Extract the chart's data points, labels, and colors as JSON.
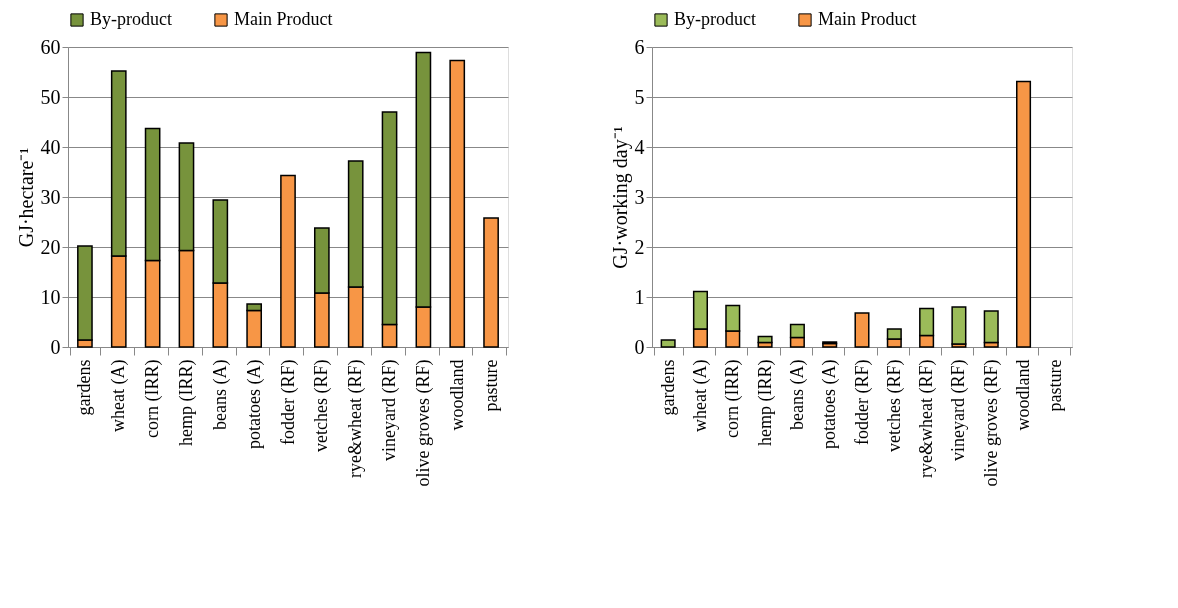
{
  "chart_data": [
    {
      "type": "bar",
      "stacked": true,
      "ylabel": "GJ·hectare⁻¹",
      "categories": [
        "gardens",
        "wheat (A)",
        "corn (IRR)",
        "hemp (IRR)",
        "beans (A)",
        "potatoes (A)",
        "fodder (RF)",
        "vetches (RF)",
        "rye&wheat (RF)",
        "vineyard (RF)",
        "olive groves (RF)",
        "woodland",
        "pasture"
      ],
      "series": [
        {
          "name": "Main Product",
          "color": "#f79646",
          "values": [
            1.4,
            18.2,
            17.3,
            19.3,
            12.8,
            7.3,
            34.3,
            10.8,
            12.0,
            4.5,
            8.0,
            57.3,
            25.8
          ]
        },
        {
          "name": "By-product",
          "color": "#77933c",
          "values": [
            18.8,
            37.0,
            26.4,
            21.5,
            16.6,
            1.3,
            null,
            13.0,
            25.2,
            42.5,
            50.9,
            null,
            null
          ]
        }
      ],
      "ylim": [
        0,
        60
      ],
      "yticks": [
        0,
        10,
        20,
        30,
        40,
        50,
        60
      ],
      "grid": "y",
      "legend": "top"
    },
    {
      "type": "bar",
      "stacked": true,
      "ylabel": "GJ·working day⁻¹",
      "categories": [
        "gardens",
        "wheat (A)",
        "corn (IRR)",
        "hemp (IRR)",
        "beans (A)",
        "potatoes (A)",
        "fodder (RF)",
        "vetches (RF)",
        "rye&wheat (RF)",
        "vineyard (RF)",
        "olive groves (RF)",
        "woodland",
        "pasture"
      ],
      "series": [
        {
          "name": "Main Product",
          "color": "#f79646",
          "values": [
            null,
            0.36,
            0.32,
            0.09,
            0.19,
            0.07,
            0.68,
            0.16,
            0.23,
            0.06,
            0.09,
            5.31,
            null
          ]
        },
        {
          "name": "By-product",
          "color": "#9bbb59",
          "values": [
            0.14,
            0.75,
            0.51,
            0.12,
            0.26,
            0.03,
            null,
            0.2,
            0.54,
            0.74,
            0.63,
            null,
            null
          ]
        }
      ],
      "ylim": [
        0,
        6
      ],
      "yticks": [
        0,
        1,
        2,
        3,
        4,
        5,
        6
      ],
      "grid": "y",
      "legend": "top"
    }
  ]
}
